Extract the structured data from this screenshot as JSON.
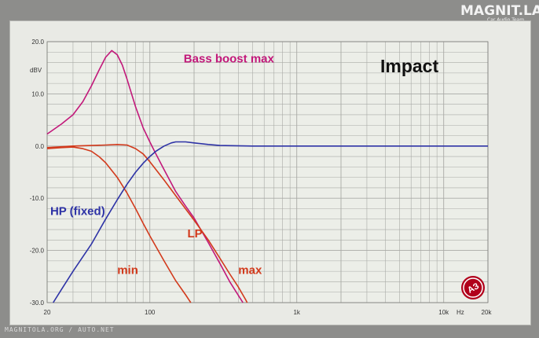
{
  "branding": {
    "logo": "MAGNIT.LA",
    "logo_sub": "Car Audio Team",
    "watermark": "MAGNITOLA.ORG / AUTO.NET",
    "badge": "АЗ"
  },
  "colors": {
    "background": "#e9eae5",
    "grid": "#a9aaa6",
    "bass_boost": "#c2187a",
    "lp": "#d23a1c",
    "hp": "#2e33a6",
    "brand": "#b1001b"
  },
  "chart_data": {
    "type": "line",
    "title": "Impact",
    "xscale": "log",
    "xlim": [
      20,
      20000
    ],
    "ylim": [
      -30,
      20
    ],
    "yunit": "dBV",
    "xunit": "Hz",
    "grid": true,
    "x_ticks": [
      {
        "value": 20,
        "label": "20"
      },
      {
        "value": 100,
        "label": "100"
      },
      {
        "value": 1000,
        "label": "1k"
      },
      {
        "value": 10000,
        "label": "10k"
      },
      {
        "value": 20000,
        "label": "20k"
      }
    ],
    "y_ticks": [
      {
        "value": 20,
        "label": "20.0"
      },
      {
        "value": 10,
        "label": "10.0"
      },
      {
        "value": 0,
        "label": "0.0"
      },
      {
        "value": -10,
        "label": "-10.0"
      },
      {
        "value": -20,
        "label": "-20.0"
      },
      {
        "value": -30,
        "label": "-30.0"
      }
    ],
    "series": [
      {
        "name": "Bass boost max",
        "color": "#c2187a",
        "points": [
          [
            20,
            2.3
          ],
          [
            25,
            4.2
          ],
          [
            30,
            6.0
          ],
          [
            35,
            8.5
          ],
          [
            40,
            11.5
          ],
          [
            45,
            14.5
          ],
          [
            50,
            17.0
          ],
          [
            55,
            18.3
          ],
          [
            60,
            17.5
          ],
          [
            65,
            15.5
          ],
          [
            70,
            12.8
          ],
          [
            80,
            7.5
          ],
          [
            90,
            3.5
          ],
          [
            100,
            0.8
          ],
          [
            110,
            -1.5
          ],
          [
            125,
            -4.5
          ],
          [
            150,
            -8.7
          ],
          [
            175,
            -11.5
          ],
          [
            200,
            -13.8
          ],
          [
            250,
            -18.5
          ],
          [
            300,
            -22.5
          ],
          [
            350,
            -26.0
          ],
          [
            400,
            -28.6
          ],
          [
            430,
            -30
          ]
        ]
      },
      {
        "name": "LP max",
        "color": "#d23a1c",
        "points": [
          [
            20,
            -0.3
          ],
          [
            30,
            0.0
          ],
          [
            40,
            0.1
          ],
          [
            50,
            0.2
          ],
          [
            60,
            0.3
          ],
          [
            70,
            0.2
          ],
          [
            80,
            -0.5
          ],
          [
            90,
            -1.5
          ],
          [
            100,
            -3.0
          ],
          [
            125,
            -6.5
          ],
          [
            150,
            -9.5
          ],
          [
            200,
            -14.2
          ],
          [
            250,
            -18.0
          ],
          [
            300,
            -21.5
          ],
          [
            350,
            -24.5
          ],
          [
            400,
            -27.0
          ],
          [
            450,
            -29.5
          ],
          [
            460,
            -30
          ]
        ]
      },
      {
        "name": "LP min",
        "color": "#d23a1c",
        "points": [
          [
            20,
            -0.5
          ],
          [
            25,
            -0.3
          ],
          [
            30,
            -0.2
          ],
          [
            35,
            -0.5
          ],
          [
            40,
            -1.0
          ],
          [
            45,
            -2.0
          ],
          [
            50,
            -3.2
          ],
          [
            60,
            -6.0
          ],
          [
            70,
            -9.0
          ],
          [
            80,
            -12.0
          ],
          [
            90,
            -14.8
          ],
          [
            100,
            -17.2
          ],
          [
            125,
            -22.0
          ],
          [
            150,
            -25.8
          ],
          [
            175,
            -28.5
          ],
          [
            190,
            -30
          ]
        ]
      },
      {
        "name": "HP (fixed)",
        "color": "#2e33a6",
        "points": [
          [
            22,
            -30
          ],
          [
            25,
            -27.5
          ],
          [
            30,
            -24.0
          ],
          [
            40,
            -18.8
          ],
          [
            50,
            -14.0
          ],
          [
            60,
            -10.3
          ],
          [
            70,
            -7.3
          ],
          [
            80,
            -5.0
          ],
          [
            90,
            -3.3
          ],
          [
            100,
            -2.0
          ],
          [
            110,
            -1.0
          ],
          [
            125,
            0.0
          ],
          [
            140,
            0.6
          ],
          [
            150,
            0.8
          ],
          [
            175,
            0.8
          ],
          [
            200,
            0.6
          ],
          [
            250,
            0.3
          ],
          [
            300,
            0.1
          ],
          [
            500,
            0.0
          ],
          [
            1000,
            0.0
          ],
          [
            20000,
            0.0
          ]
        ]
      }
    ],
    "annotations": [
      {
        "text": "Bass boost max",
        "color": "#c2187a",
        "x": 170,
        "y": 16.0,
        "size": 15
      },
      {
        "text": "HP (fixed)",
        "color": "#2e33a6",
        "x": 21,
        "y": -13.2,
        "size": 15
      },
      {
        "text": "LP",
        "color": "#d23a1c",
        "x": 180,
        "y": -17.5,
        "size": 15
      },
      {
        "text": "min",
        "color": "#d23a1c",
        "x": 60,
        "y": -24.5,
        "size": 15
      },
      {
        "text": "max",
        "color": "#d23a1c",
        "x": 400,
        "y": -24.5,
        "size": 15
      }
    ]
  }
}
